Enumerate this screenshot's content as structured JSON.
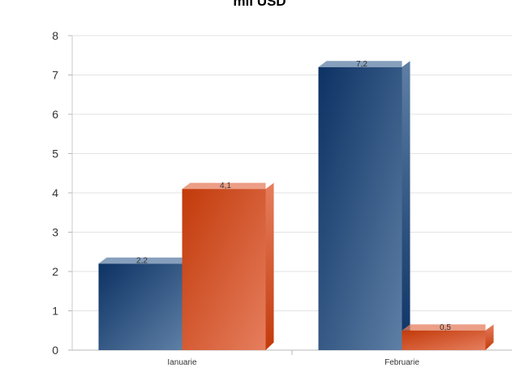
{
  "chart_data": {
    "type": "bar",
    "title": "mil USD",
    "xlabel": "",
    "ylabel": "",
    "categories": [
      "Ianuarie",
      "Februarie"
    ],
    "series": [
      {
        "values": [
          2.2,
          7.2
        ],
        "labels": [
          "2,2",
          "7,2"
        ],
        "color_dark": "#0c3264",
        "color_light": "#5e7fa5"
      },
      {
        "values": [
          4.1,
          0.5
        ],
        "labels": [
          "4,1",
          "0,5"
        ],
        "color_dark": "#c23a0a",
        "color_light": "#e67e5e"
      }
    ],
    "ylim": [
      0,
      8
    ],
    "yticks": [
      "0",
      "1",
      "2",
      "3",
      "4",
      "5",
      "6",
      "7",
      "8"
    ],
    "grid": true,
    "legend": "none"
  }
}
